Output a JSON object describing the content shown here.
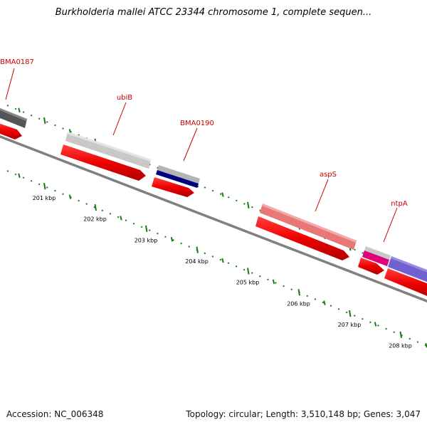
{
  "title": "Burkholderia mallei ATCC 23344 chromosome 1, complete sequen...",
  "footer": {
    "accession": "Accession: NC_006348",
    "summary": "Topology: circular; Length: 3,510,148 bp; Genes: 3,047"
  },
  "axis": {
    "ticks": [
      {
        "kbp": 201,
        "label": "201 kbp"
      },
      {
        "kbp": 202,
        "label": "202 kbp"
      },
      {
        "kbp": 203,
        "label": "203 kbp"
      },
      {
        "kbp": 204,
        "label": "204 kbp"
      },
      {
        "kbp": 205,
        "label": "205 kbp"
      },
      {
        "kbp": 206,
        "label": "206 kbp"
      },
      {
        "kbp": 207,
        "label": "207 kbp"
      },
      {
        "kbp": 208,
        "label": "208 kbp"
      }
    ]
  },
  "genes": [
    {
      "name": "BMA0187",
      "color": "#555555",
      "label_color": "#cc0000"
    },
    {
      "name": "ubiB",
      "color": "#c8c8c8",
      "label_color": "#cc0000"
    },
    {
      "name": "BMA0190",
      "color": "#b4b4b4",
      "label_color": "#cc0000"
    },
    {
      "name": "aspS",
      "color": "#e87878",
      "label_color": "#cc0000"
    },
    {
      "name": "ntpA",
      "color": "#c8c8c8",
      "label_color": "#cc0000"
    }
  ],
  "colors": {
    "backbone": "#808080",
    "orf": "#ee0000",
    "tick": "#1a7a1a",
    "cog_dark_blue": "#000080",
    "cog_pink": "#e0007a",
    "cog_purple": "#7060d0"
  }
}
